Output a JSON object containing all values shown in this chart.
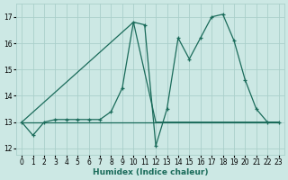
{
  "xlabel": "Humidex (Indice chaleur)",
  "bg_color": "#cce8e4",
  "grid_color": "#aacfca",
  "line_color": "#1a6b5a",
  "xlim": [
    -0.5,
    23.5
  ],
  "ylim": [
    11.75,
    17.5
  ],
  "yticks": [
    12,
    13,
    14,
    15,
    16,
    17
  ],
  "xticks": [
    0,
    1,
    2,
    3,
    4,
    5,
    6,
    7,
    8,
    9,
    10,
    11,
    12,
    13,
    14,
    15,
    16,
    17,
    18,
    19,
    20,
    21,
    22,
    23
  ],
  "series": [
    {
      "x": [
        0,
        1,
        2,
        3,
        4,
        5,
        6,
        7,
        8,
        9,
        10,
        11,
        12,
        13,
        14,
        15,
        16,
        17,
        18,
        19,
        20,
        21,
        22,
        23
      ],
      "y": [
        13,
        12.5,
        13,
        13.1,
        13.1,
        13.1,
        13.1,
        13.1,
        13.4,
        14.3,
        16.8,
        16.7,
        12.1,
        13.5,
        16.2,
        15.4,
        16.2,
        17.0,
        17.1,
        16.1,
        14.6,
        13.5,
        13.0,
        13.0
      ]
    },
    {
      "x": [
        0,
        10,
        12,
        23
      ],
      "y": [
        13,
        16.8,
        13,
        13
      ]
    },
    {
      "x": [
        0,
        23
      ],
      "y": [
        13,
        13
      ]
    }
  ]
}
